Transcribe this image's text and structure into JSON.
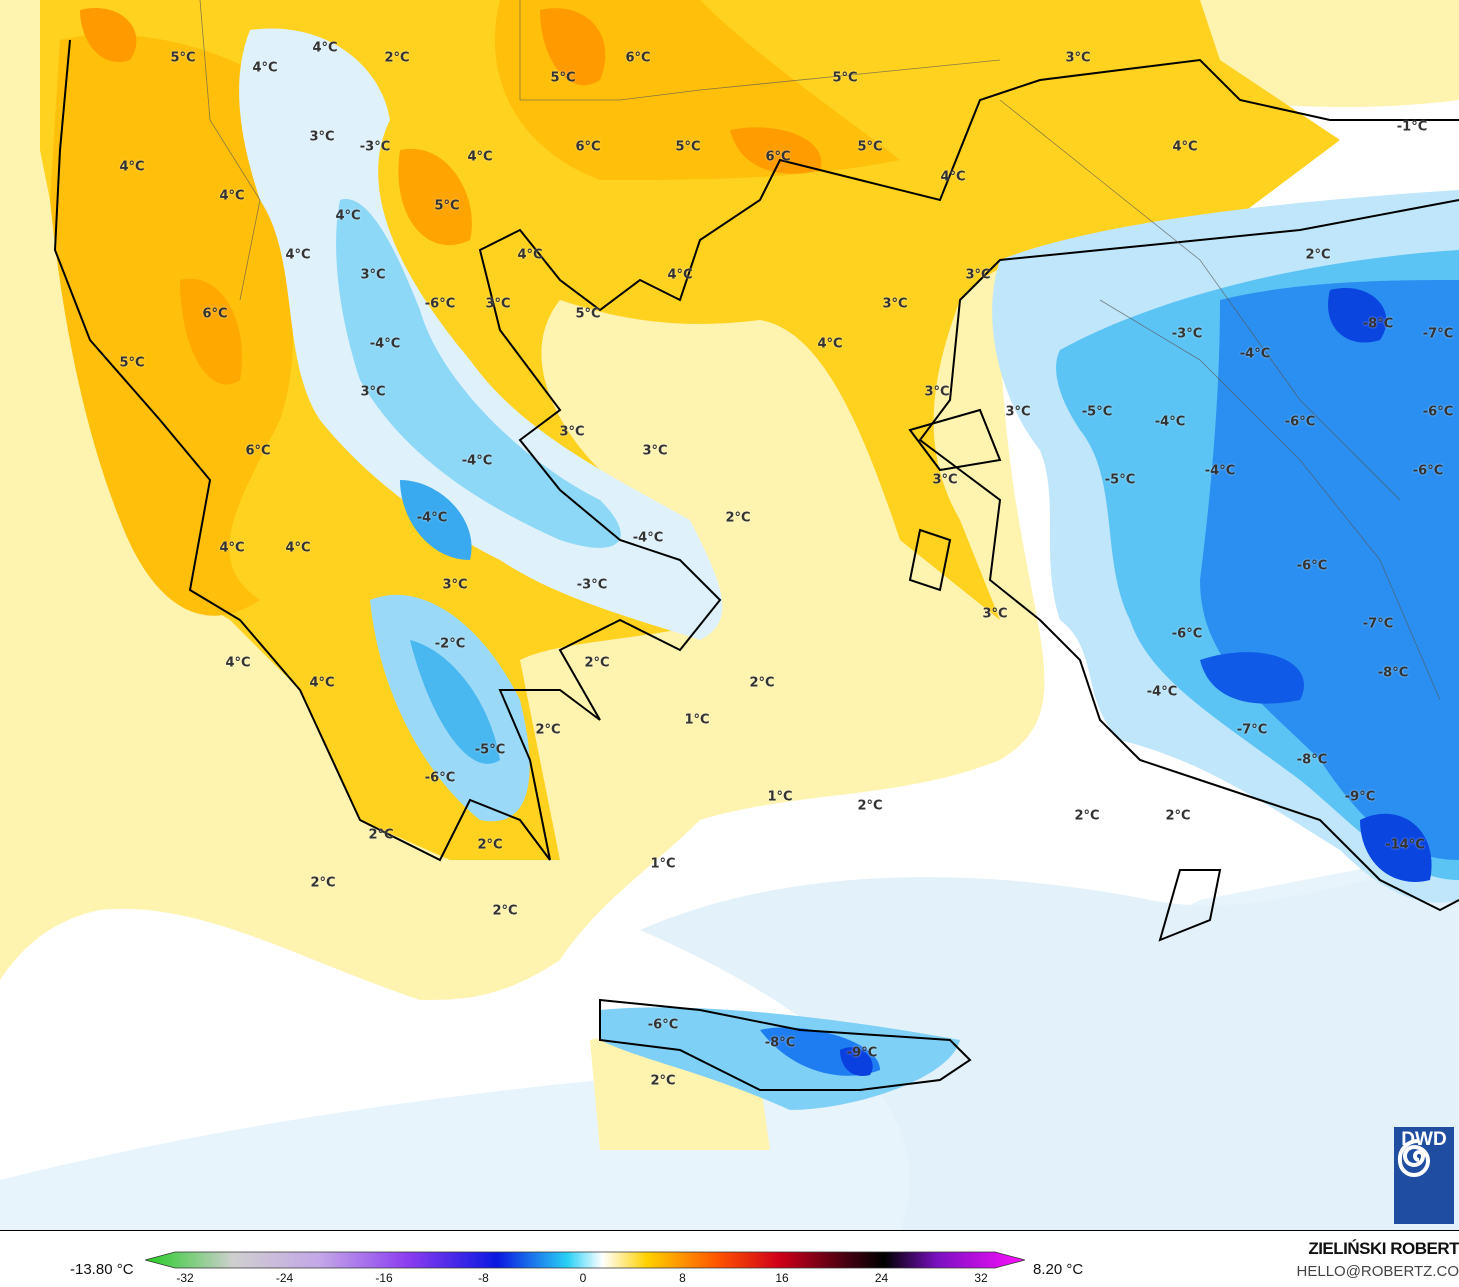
{
  "map": {
    "labels": [
      "5°C",
      "4°C",
      "4°C",
      "2°C",
      "5°C",
      "6°C",
      "5°C",
      "3°C",
      "-1°C",
      "3°C",
      "-3°C",
      "4°C",
      "6°C",
      "5°C",
      "6°C",
      "5°C",
      "4°C",
      "4°C",
      "4°C",
      "4°C",
      "5°C",
      "4°C",
      "4°C",
      "4°C",
      "3°C",
      "4°C",
      "3°C",
      "2°C",
      "6°C",
      "-6°C",
      "3°C",
      "5°C",
      "3°C",
      "-8°C",
      "-7°C",
      "-3°C",
      "-4°C",
      "4°C",
      "-4°C",
      "5°C",
      "3°C",
      "3°C",
      "3°C",
      "-5°C",
      "-4°C",
      "-6°C",
      "-6°C",
      "3°C",
      "3°C",
      "6°C",
      "-4°C",
      "-4°C",
      "-6°C",
      "3°C",
      "-5°C",
      "2°C",
      "-4°C",
      "-4°C",
      "4°C",
      "4°C",
      "3°C",
      "-3°C",
      "-6°C",
      "3°C",
      "-7°C",
      "-6°C",
      "-2°C",
      "2°C",
      "2°C",
      "-8°C",
      "4°C",
      "4°C",
      "-4°C",
      "1°C",
      "2°C",
      "-7°C",
      "-5°C",
      "-8°C",
      "-6°C",
      "1°C",
      "2°C",
      "-9°C",
      "2°C",
      "2°C",
      "2°C",
      "2°C",
      "-14°C",
      "1°C",
      "2°C",
      "2°C",
      "-6°C",
      "-8°C",
      "-9°C",
      "2°C"
    ],
    "colors": {
      "warm_strong": "#ff9e00",
      "warm": "#ffc20e",
      "warm_mid": "#ffd92a",
      "warm_pale": "#fff3b0",
      "cold_pale": "#dff1fb",
      "cold": "#6fcff5",
      "cold_strong": "#1e7df0",
      "cold_deep": "#0a3fe0",
      "coast": "#000000"
    }
  },
  "legend": {
    "min_value": "-13.80 °C",
    "max_value": "8.20 °C",
    "ticks": [
      "-32",
      "-24",
      "-16",
      "-8",
      "0",
      "8",
      "16",
      "24",
      "32"
    ],
    "range": [
      -32,
      32
    ]
  },
  "credits": {
    "author": "ZIELIŃSKI ROBERT",
    "email": "HELLO@ROBERTZ.CO",
    "logo_text": "DWD"
  }
}
